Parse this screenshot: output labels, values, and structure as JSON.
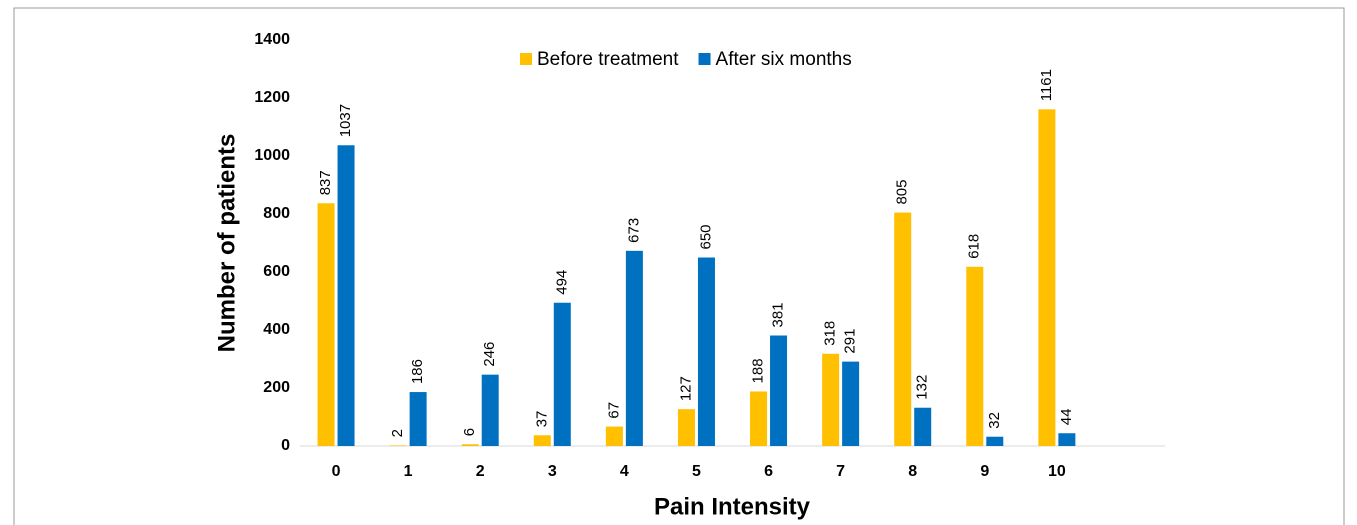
{
  "chart_data": {
    "type": "bar",
    "x_label": "Pain Intensity",
    "y_label": "Number of patients",
    "categories": [
      "0",
      "1",
      "2",
      "3",
      "4",
      "5",
      "6",
      "7",
      "8",
      "9",
      "10",
      null
    ],
    "series": [
      {
        "name": "Before treatment",
        "color": "#FFC000",
        "values": [
          837,
          2,
          6,
          37,
          67,
          127,
          188,
          318,
          805,
          618,
          1161,
          null
        ]
      },
      {
        "name": "After six months",
        "color": "#0070C0",
        "values": [
          1037,
          186,
          246,
          494,
          673,
          650,
          381,
          291,
          132,
          32,
          44,
          null
        ]
      }
    ],
    "ylim": [
      0,
      1400
    ],
    "yticks": [
      0,
      200,
      400,
      600,
      800,
      1000,
      1200,
      1400
    ],
    "legend": "top"
  }
}
